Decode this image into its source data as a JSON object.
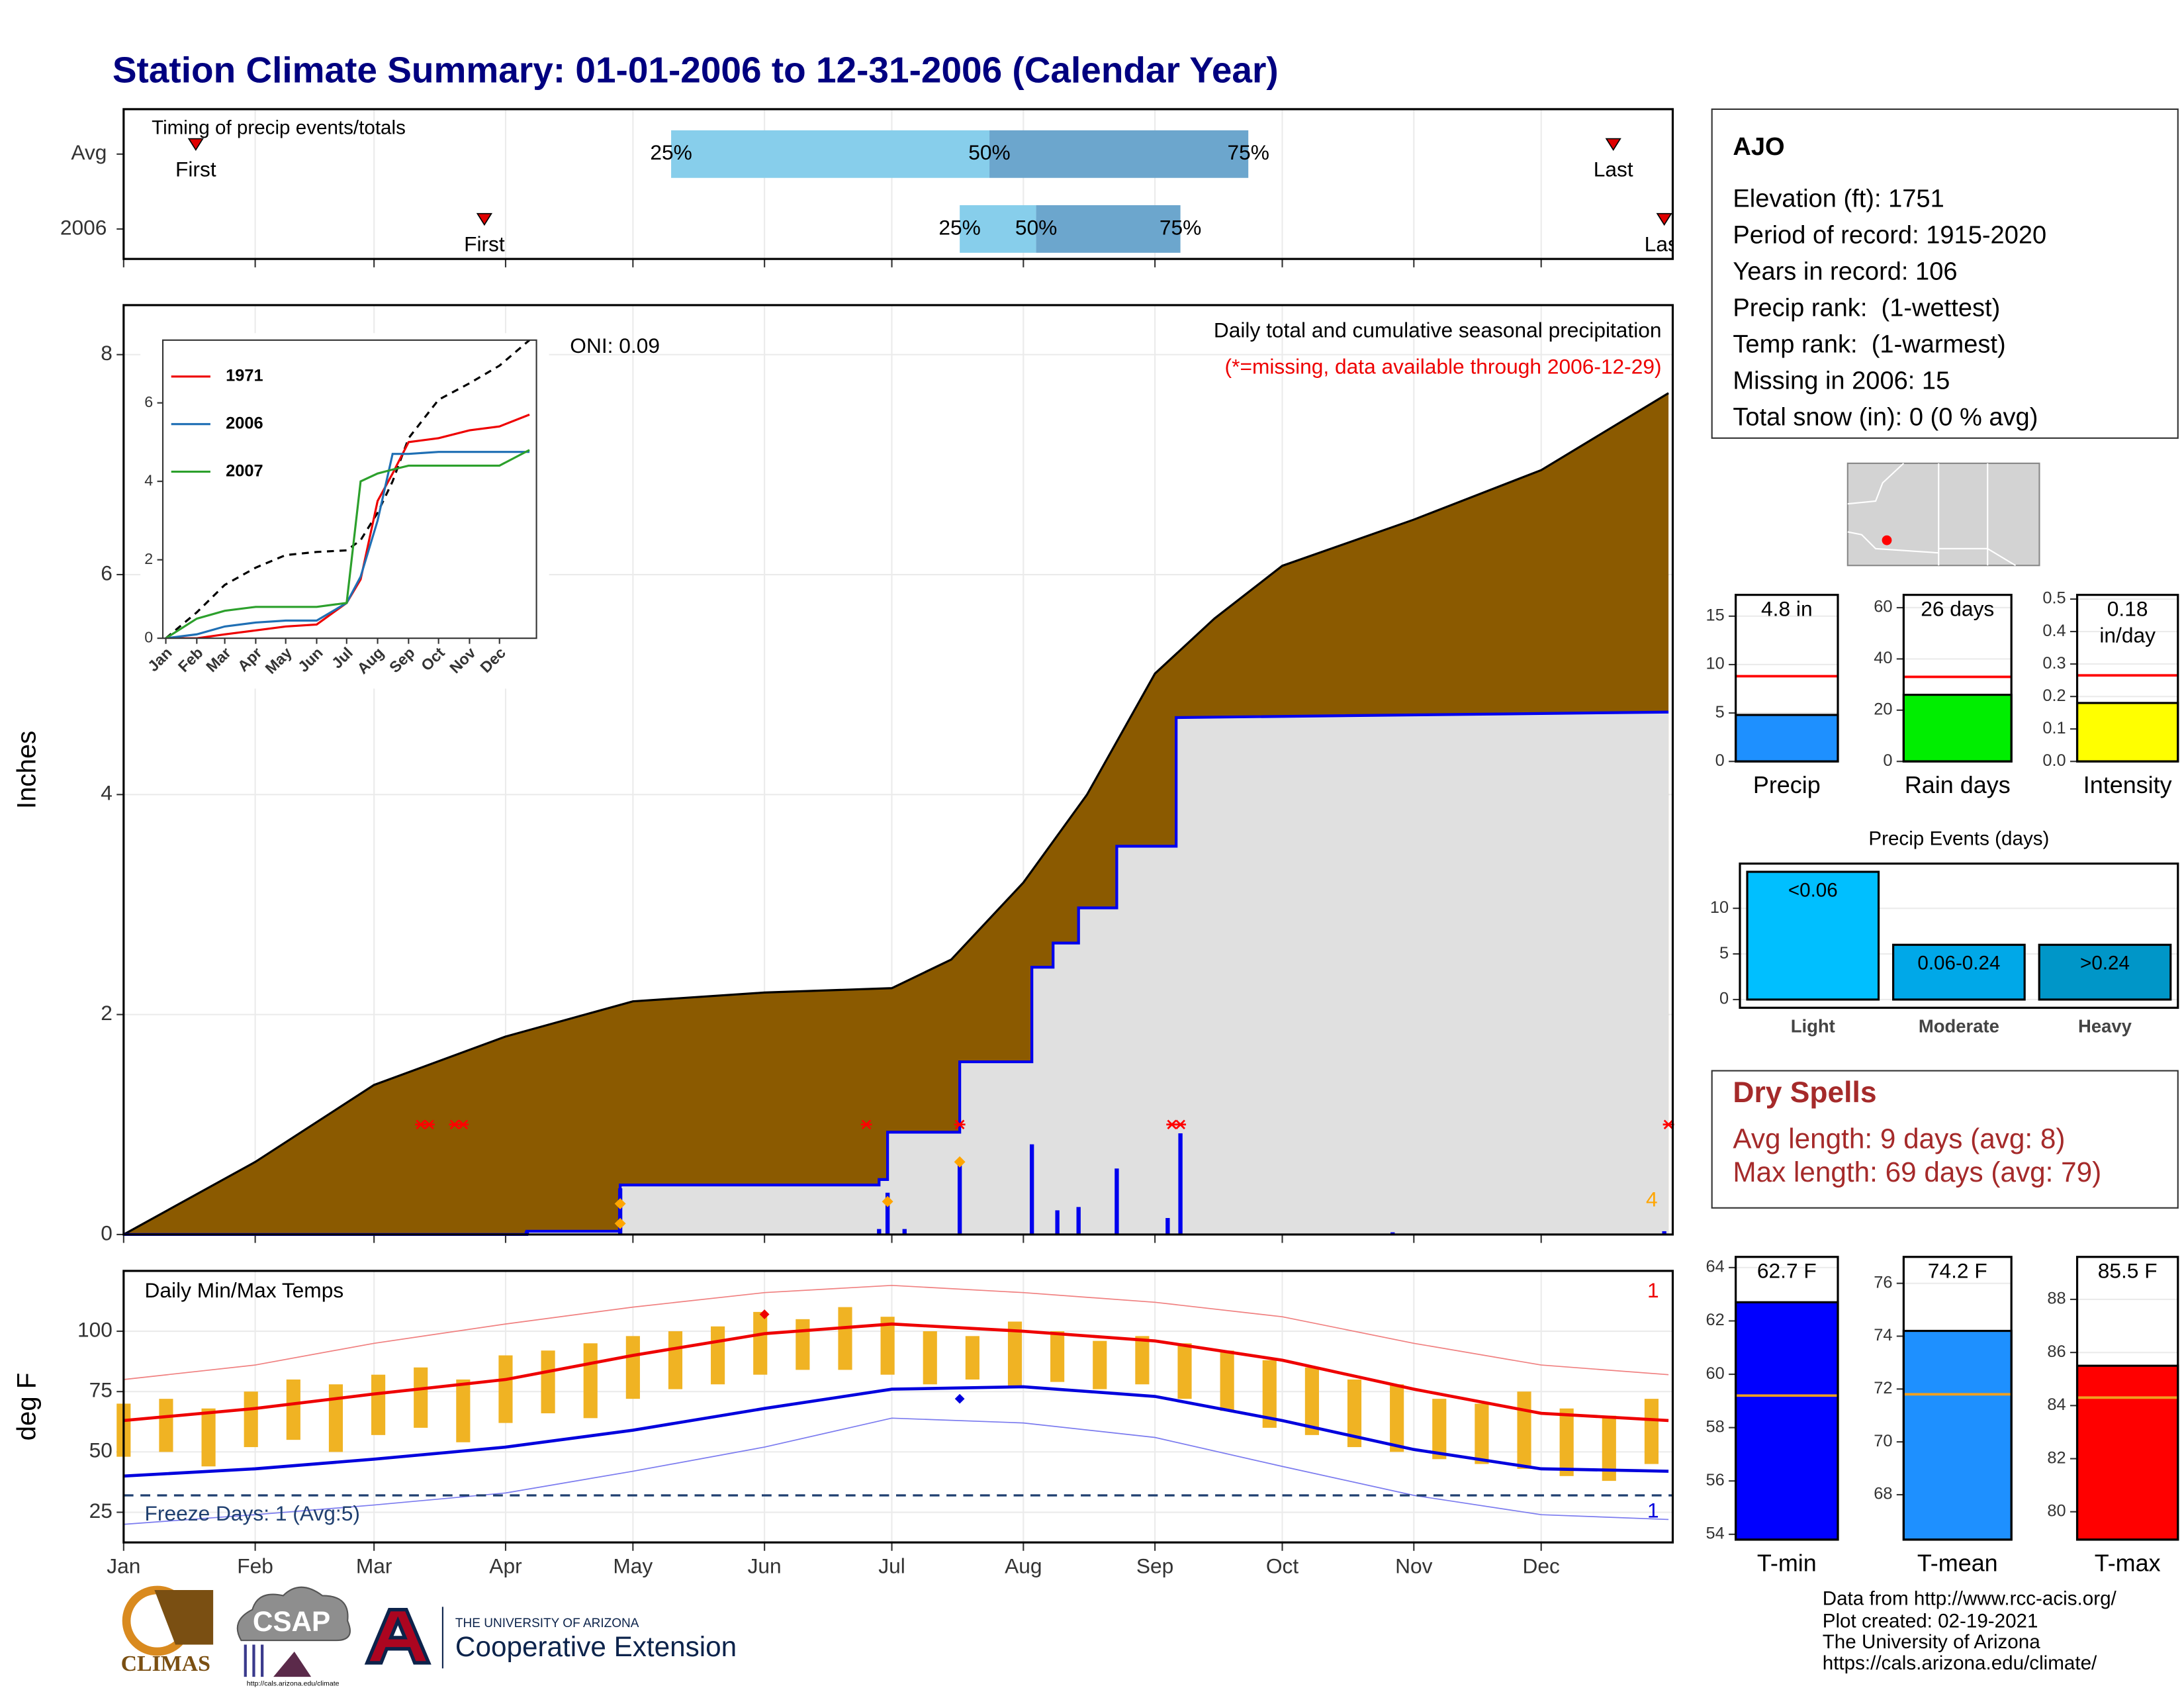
{
  "title": "Station Climate Summary: 01-01-2006 to 12-31-2006 (Calendar Year)",
  "station": {
    "name": "AJO",
    "lines": [
      "Elevation (ft): 1751",
      "Period of record: 1915-2020",
      "Years in record: 106",
      "Precip rank:  (1-wettest)",
      "Temp rank:  (1-warmest)",
      "Missing in 2006: 15",
      "Total snow (in): 0 (0 % avg)"
    ]
  },
  "dry_spells": {
    "title": "Dry Spells",
    "lines": [
      "Avg length: 9 days (avg: 8)",
      "Max length: 69 days (avg: 79)"
    ]
  },
  "footer": {
    "lines": [
      "Data from http://www.rcc-acis.org/",
      "Plot created: 02-19-2021",
      "The University of Arizona",
      "https://cals.arizona.edu/climate/"
    ]
  },
  "logos": {
    "climas": "CLIMAS",
    "csap": "CSAP",
    "csap_url": "http://cals.arizona.edu/climate",
    "university": "THE UNIVERSITY OF ARIZONA",
    "extension": "Cooperative Extension"
  },
  "chart_data": [
    {
      "type": "timing",
      "title": "Timing of precip events/totals",
      "categories": [
        "Avg",
        "2006"
      ],
      "series": [
        {
          "name": "First",
          "values": [
            18,
            86
          ]
        },
        {
          "name": "25%",
          "values": [
            130,
            198
          ]
        },
        {
          "name": "50%",
          "values": [
            205,
            216
          ]
        },
        {
          "name": "75%",
          "values": [
            266,
            250
          ]
        },
        {
          "name": "Last",
          "values": [
            352,
            364
          ]
        }
      ],
      "colors": [
        "#87ceeb",
        "#6ca6cd"
      ],
      "marker_color": "#e00000",
      "xlim": [
        1,
        366
      ],
      "xticks": [
        1,
        32,
        60,
        91,
        121,
        152,
        182,
        213,
        244,
        274,
        305,
        335
      ]
    },
    {
      "type": "area",
      "annotation": "Daily total and cumulative seasonal precipitation",
      "note": "(*=missing, data available through 2006-12-29)",
      "oni": "ONI: 0.09",
      "marker_count": 4,
      "ylabel": "Inches",
      "xlim": [
        1,
        366
      ],
      "xticks": [
        1,
        32,
        60,
        91,
        121,
        152,
        182,
        213,
        244,
        274,
        305,
        335
      ],
      "ylim": [
        0,
        8.45
      ],
      "yticks": [
        0,
        2,
        4,
        6,
        8
      ],
      "grid": true,
      "average_cumulative": {
        "color": "#8b5a00",
        "x": [
          1,
          32,
          60,
          91,
          121,
          152,
          182,
          196,
          213,
          228,
          244,
          258,
          274,
          305,
          335,
          365
        ],
        "values": [
          0,
          0.66,
          1.36,
          1.8,
          2.12,
          2.2,
          2.24,
          2.5,
          3.2,
          4.0,
          5.1,
          5.6,
          6.08,
          6.5,
          6.95,
          7.65
        ]
      },
      "cumulative": {
        "color": "#0000ee",
        "fill": "#e0e0e0",
        "x": [
          1,
          96,
          96,
          118,
          118,
          179,
          179,
          181,
          181,
          198,
          198,
          215,
          215,
          220,
          220,
          226,
          226,
          235,
          235,
          249,
          249,
          365
        ],
        "values": [
          0,
          0,
          0.03,
          0.03,
          0.45,
          0.45,
          0.5,
          0.5,
          0.93,
          0.93,
          1.57,
          1.57,
          2.43,
          2.43,
          2.65,
          2.65,
          2.97,
          2.97,
          3.53,
          3.53,
          4.7,
          4.75
        ]
      },
      "daily": {
        "color": "#0000ee",
        "x": [
          96,
          118,
          179,
          181,
          185,
          198,
          215,
          221,
          226,
          235,
          247,
          250,
          300,
          364
        ],
        "values": [
          0.03,
          0.42,
          0.05,
          0.38,
          0.05,
          0.64,
          0.82,
          0.22,
          0.25,
          0.6,
          0.15,
          0.92,
          0.02,
          0.03
        ]
      },
      "missing": {
        "color": "#ff0000",
        "x": [
          71,
          73,
          79,
          81,
          176,
          198,
          248,
          250,
          365
        ],
        "values": [
          1,
          1,
          1,
          1,
          1,
          1,
          1,
          1,
          1
        ]
      },
      "markers": {
        "color": "#ffa500",
        "x": [
          118,
          118,
          181,
          198
        ],
        "values": [
          0.1,
          0.28,
          0.3,
          0.66
        ]
      }
    },
    {
      "type": "line",
      "x": [
        1,
        32,
        60,
        91,
        121,
        152,
        182,
        196,
        213,
        228,
        244,
        274,
        305,
        335,
        365
      ],
      "xlim": [
        -2,
        372
      ],
      "ylim": [
        0,
        7.6
      ],
      "yticks": [
        0,
        2,
        4,
        6
      ],
      "xticks": [
        {
          "value": 1,
          "label": "Jan"
        },
        {
          "value": 32,
          "label": "Feb"
        },
        {
          "value": 60,
          "label": "Mar"
        },
        {
          "value": 91,
          "label": "Apr"
        },
        {
          "value": 121,
          "label": "May"
        },
        {
          "value": 152,
          "label": "Jun"
        },
        {
          "value": 182,
          "label": "Jul"
        },
        {
          "value": 213,
          "label": "Aug"
        },
        {
          "value": 244,
          "label": "Sep"
        },
        {
          "value": 274,
          "label": "Oct"
        },
        {
          "value": 305,
          "label": "Nov"
        },
        {
          "value": 335,
          "label": "Dec"
        }
      ],
      "series": [
        {
          "name": "1971",
          "color": "#ee0000",
          "values": [
            0,
            0,
            0.1,
            0.2,
            0.3,
            0.35,
            0.9,
            1.5,
            3.5,
            4.2,
            5.0,
            5.1,
            5.3,
            5.4,
            5.7
          ]
        },
        {
          "name": "2006",
          "color": "#1f6fb4",
          "values": [
            0,
            0.1,
            0.3,
            0.4,
            0.45,
            0.45,
            0.9,
            1.57,
            3.0,
            4.7,
            4.7,
            4.75,
            4.75,
            4.75,
            4.75
          ]
        },
        {
          "name": "2007",
          "color": "#2ca02c",
          "values": [
            0,
            0.5,
            0.7,
            0.8,
            0.8,
            0.8,
            0.9,
            4.0,
            4.2,
            4.3,
            4.4,
            4.4,
            4.4,
            4.4,
            4.8
          ]
        }
      ],
      "average": {
        "color": "#000000",
        "values": [
          0,
          0.66,
          1.36,
          1.8,
          2.12,
          2.2,
          2.24,
          2.5,
          3.2,
          4.0,
          5.1,
          6.08,
          6.5,
          6.95,
          7.6
        ]
      }
    },
    {
      "type": "range",
      "title": "Daily Min/Max Temps",
      "ylabel": "deg F",
      "freeze_label": "Freeze Days: 1 (Avg:5)",
      "freeze_line": 32,
      "freeze_color": "#1f3f6f",
      "record_high_count": 1,
      "record_low_count": 1,
      "xlim": [
        1,
        366
      ],
      "ylim": [
        12.5,
        125
      ],
      "yticks": [
        25,
        50,
        75,
        100
      ],
      "grid": true,
      "xticks": [
        {
          "value": 1,
          "label": "Jan"
        },
        {
          "value": 32,
          "label": "Feb"
        },
        {
          "value": 60,
          "label": "Mar"
        },
        {
          "value": 91,
          "label": "Apr"
        },
        {
          "value": 121,
          "label": "May"
        },
        {
          "value": 152,
          "label": "Jun"
        },
        {
          "value": 182,
          "label": "Jul"
        },
        {
          "value": 213,
          "label": "Aug"
        },
        {
          "value": 244,
          "label": "Sep"
        },
        {
          "value": 274,
          "label": "Oct"
        },
        {
          "value": 305,
          "label": "Nov"
        },
        {
          "value": 335,
          "label": "Dec"
        }
      ],
      "bar_color": "#f0b323",
      "x": [
        1,
        11,
        21,
        31,
        41,
        51,
        61,
        71,
        81,
        91,
        101,
        111,
        121,
        131,
        141,
        151,
        161,
        171,
        181,
        191,
        201,
        211,
        221,
        231,
        241,
        251,
        261,
        271,
        281,
        291,
        301,
        311,
        321,
        331,
        341,
        351,
        361
      ],
      "highs": [
        70,
        72,
        68,
        75,
        80,
        78,
        82,
        85,
        80,
        90,
        92,
        95,
        98,
        100,
        102,
        108,
        105,
        110,
        106,
        100,
        98,
        104,
        100,
        96,
        98,
        95,
        92,
        88,
        85,
        80,
        78,
        72,
        70,
        75,
        68,
        65,
        72
      ],
      "lows": [
        48,
        50,
        44,
        52,
        55,
        50,
        57,
        60,
        54,
        62,
        66,
        64,
        72,
        76,
        78,
        82,
        84,
        84,
        82,
        78,
        80,
        77,
        79,
        76,
        78,
        72,
        67,
        60,
        57,
        52,
        50,
        47,
        45,
        43,
        40,
        38,
        45
      ],
      "normals_x": [
        1,
        32,
        60,
        91,
        121,
        152,
        182,
        213,
        244,
        274,
        305,
        335,
        365
      ],
      "avg_max": {
        "color": "#ee0000",
        "values": [
          63,
          68,
          74,
          80,
          90,
          99,
          103,
          100,
          96,
          88,
          76,
          66,
          63
        ]
      },
      "avg_min": {
        "color": "#0000dd",
        "values": [
          40,
          43,
          47,
          52,
          59,
          68,
          76,
          77,
          73,
          63,
          51,
          43,
          42
        ]
      },
      "record_max": {
        "color": "#f08080",
        "values": [
          80,
          86,
          95,
          103,
          110,
          116,
          119,
          116,
          112,
          106,
          95,
          86,
          82
        ]
      },
      "record_min": {
        "color": "#7b7bef",
        "values": [
          20,
          24,
          28,
          33,
          42,
          52,
          64,
          62,
          56,
          44,
          32,
          24,
          22
        ]
      },
      "extremes": {
        "x": [
          152,
          198
        ],
        "values": [
          107,
          72
        ],
        "colors": [
          "#ee0000",
          "#0000dd"
        ]
      }
    },
    {
      "type": "bar",
      "categories": [
        "Precip"
      ],
      "values": [
        4.8
      ],
      "value_labels": [
        "4.8 in"
      ],
      "color": "#1e90ff",
      "average": 8.8,
      "average_color": "#ff0000",
      "ylim": [
        0,
        17.2
      ],
      "yticks": [
        0,
        5,
        10,
        15
      ]
    },
    {
      "type": "bar",
      "categories": [
        "Rain days"
      ],
      "values": [
        26
      ],
      "value_labels": [
        "26 days"
      ],
      "color": "#00ee00",
      "average": 33,
      "average_color": "#ff0000",
      "ylim": [
        0,
        65
      ],
      "yticks": [
        0,
        20,
        40,
        60
      ]
    },
    {
      "type": "bar",
      "categories": [
        "Intensity"
      ],
      "values": [
        0.18
      ],
      "value_labels": [
        "0.18 in/day"
      ],
      "color": "#ffff00",
      "average": 0.265,
      "average_color": "#ff0000",
      "ylim": [
        0,
        0.513
      ],
      "yticks": [
        {
          "value": 0,
          "label": "0.0"
        },
        0.1,
        0.2,
        0.3,
        0.4,
        0.5
      ]
    },
    {
      "type": "bar",
      "title": "Precip Events (days)",
      "categories": [
        "Light",
        "Moderate",
        "Heavy"
      ],
      "values": [
        14,
        6,
        6
      ],
      "bin_labels": [
        "<0.06",
        "0.06-0.24",
        ">0.24"
      ],
      "colors": [
        "#00bfff",
        "#00a8e8",
        "#0096c8"
      ],
      "ylim": [
        -0.9,
        14.9
      ],
      "yticks": [
        0,
        5,
        10
      ]
    },
    {
      "type": "bar",
      "categories": [
        "T-min"
      ],
      "values": [
        62.7
      ],
      "value_labels": [
        "62.7 F"
      ],
      "color": "#0000ff",
      "average": 59.2,
      "average_color": "#f0a020",
      "ylim": [
        53.8,
        64.4
      ],
      "yticks": [
        54,
        56,
        58,
        60,
        62,
        64
      ]
    },
    {
      "type": "bar",
      "categories": [
        "T-mean"
      ],
      "values": [
        74.2
      ],
      "value_labels": [
        "74.2 F"
      ],
      "color": "#1e90ff",
      "average": 71.8,
      "average_color": "#f0a020",
      "ylim": [
        66.3,
        77
      ],
      "yticks": [
        68,
        70,
        72,
        74,
        76
      ]
    },
    {
      "type": "bar",
      "categories": [
        "T-max"
      ],
      "values": [
        85.5
      ],
      "value_labels": [
        "85.5 F"
      ],
      "color": "#ff0000",
      "average": 84.3,
      "average_color": "#f0a020",
      "ylim": [
        78.95,
        89.6
      ],
      "yticks": [
        80,
        82,
        84,
        86,
        88
      ]
    }
  ]
}
